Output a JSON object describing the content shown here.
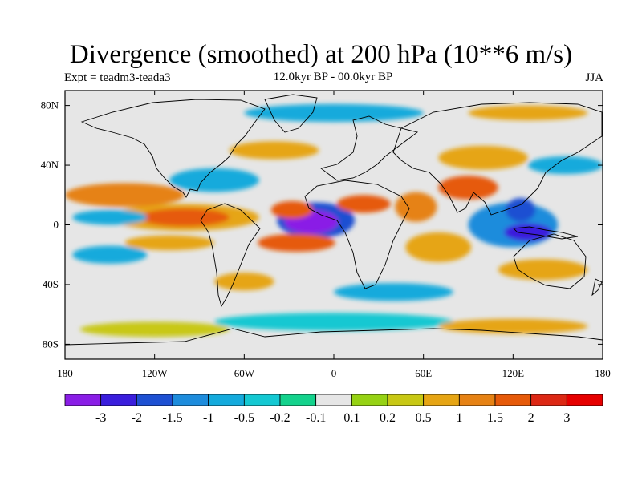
{
  "title": "Divergence (smoothed) at 200 hPa (10**6 m/s)",
  "left_label": "Expt = teadm3-teada3",
  "center_label": "12.0kyr BP - 00.0kyr BP",
  "right_label": "JJA",
  "chart_data": {
    "type": "contour-map",
    "projection": "cylindrical-equidistant",
    "lon_range": [
      -180,
      180
    ],
    "lat_range": [
      -90,
      90
    ],
    "y_ticks": [
      {
        "lat": 80,
        "label": "80N"
      },
      {
        "lat": 40,
        "label": "40N"
      },
      {
        "lat": 0,
        "label": "0"
      },
      {
        "lat": -40,
        "label": "40S"
      },
      {
        "lat": -80,
        "label": "80S"
      }
    ],
    "x_ticks": [
      {
        "lon": -180,
        "label": "180"
      },
      {
        "lon": -120,
        "label": "120W"
      },
      {
        "lon": -60,
        "label": "60W"
      },
      {
        "lon": 0,
        "label": "0"
      },
      {
        "lon": 60,
        "label": "60E"
      },
      {
        "lon": 120,
        "label": "120E"
      },
      {
        "lon": 180,
        "label": "180"
      }
    ],
    "colorbar": {
      "labels": [
        "-3",
        "-2",
        "-1.5",
        "-1",
        "-0.5",
        "-0.2",
        "-0.1",
        "0.1",
        "0.2",
        "0.5",
        "1",
        "1.5",
        "2",
        "3"
      ],
      "colors": [
        "#8A1EE6",
        "#3A1EDC",
        "#1E50D2",
        "#1E8CDC",
        "#14AADC",
        "#14C8D2",
        "#14D28C",
        "#E6E6E6",
        "#96D214",
        "#C8C814",
        "#E6A514",
        "#E68214",
        "#E65A0A",
        "#DC2814",
        "#E60000"
      ]
    },
    "anomaly_blobs": [
      {
        "lon": -15,
        "lat": 2,
        "rlon": 18,
        "rlat": 8,
        "level": 0
      },
      {
        "lon": -12,
        "lat": 3,
        "rlon": 26,
        "rlat": 12,
        "level": 2
      },
      {
        "lon": -28,
        "lat": 10,
        "rlon": 14,
        "rlat": 6,
        "level": 12
      },
      {
        "lon": 20,
        "lat": 14,
        "rlon": 18,
        "rlat": 6,
        "level": 12
      },
      {
        "lon": -25,
        "lat": -12,
        "rlon": 26,
        "rlat": 6,
        "level": 12
      },
      {
        "lon": 130,
        "lat": -5,
        "rlon": 16,
        "rlat": 6,
        "level": 1
      },
      {
        "lon": 125,
        "lat": 10,
        "rlon": 10,
        "rlat": 8,
        "level": 2
      },
      {
        "lon": 120,
        "lat": 0,
        "rlon": 30,
        "rlat": 15,
        "level": 3
      },
      {
        "lon": 90,
        "lat": 25,
        "rlon": 20,
        "rlat": 8,
        "level": 12
      },
      {
        "lon": 55,
        "lat": 12,
        "rlon": 14,
        "rlat": 10,
        "level": 11
      },
      {
        "lon": 70,
        "lat": -15,
        "rlon": 22,
        "rlat": 10,
        "level": 10
      },
      {
        "lon": -140,
        "lat": 20,
        "rlon": 40,
        "rlat": 8,
        "level": 11
      },
      {
        "lon": -100,
        "lat": 5,
        "rlon": 30,
        "rlat": 6,
        "level": 12
      },
      {
        "lon": -100,
        "lat": 5,
        "rlon": 50,
        "rlat": 9,
        "level": 10
      },
      {
        "lon": -150,
        "lat": 5,
        "rlon": 25,
        "rlat": 5,
        "level": 4
      },
      {
        "lon": -150,
        "lat": -20,
        "rlon": 25,
        "rlat": 6,
        "level": 4
      },
      {
        "lon": -110,
        "lat": -12,
        "rlon": 30,
        "rlat": 5,
        "level": 10
      },
      {
        "lon": -80,
        "lat": 30,
        "rlon": 30,
        "rlat": 8,
        "level": 4
      },
      {
        "lon": -40,
        "lat": 50,
        "rlon": 30,
        "rlat": 6,
        "level": 10
      },
      {
        "lon": 100,
        "lat": 45,
        "rlon": 30,
        "rlat": 8,
        "level": 10
      },
      {
        "lon": 155,
        "lat": 40,
        "rlon": 25,
        "rlat": 6,
        "level": 4
      },
      {
        "lon": 40,
        "lat": -45,
        "rlon": 40,
        "rlat": 6,
        "level": 4
      },
      {
        "lon": 140,
        "lat": -30,
        "rlon": 30,
        "rlat": 7,
        "level": 10
      },
      {
        "lon": -60,
        "lat": -38,
        "rlon": 20,
        "rlat": 6,
        "level": 10
      },
      {
        "lon": 0,
        "lat": -65,
        "rlon": 80,
        "rlat": 6,
        "level": 5
      },
      {
        "lon": -120,
        "lat": -70,
        "rlon": 50,
        "rlat": 5,
        "level": 9
      },
      {
        "lon": 120,
        "lat": -68,
        "rlon": 50,
        "rlat": 5,
        "level": 10
      },
      {
        "lon": 0,
        "lat": 75,
        "rlon": 60,
        "rlat": 6,
        "level": 4
      },
      {
        "lon": 130,
        "lat": 75,
        "rlon": 40,
        "rlat": 5,
        "level": 10
      }
    ]
  }
}
